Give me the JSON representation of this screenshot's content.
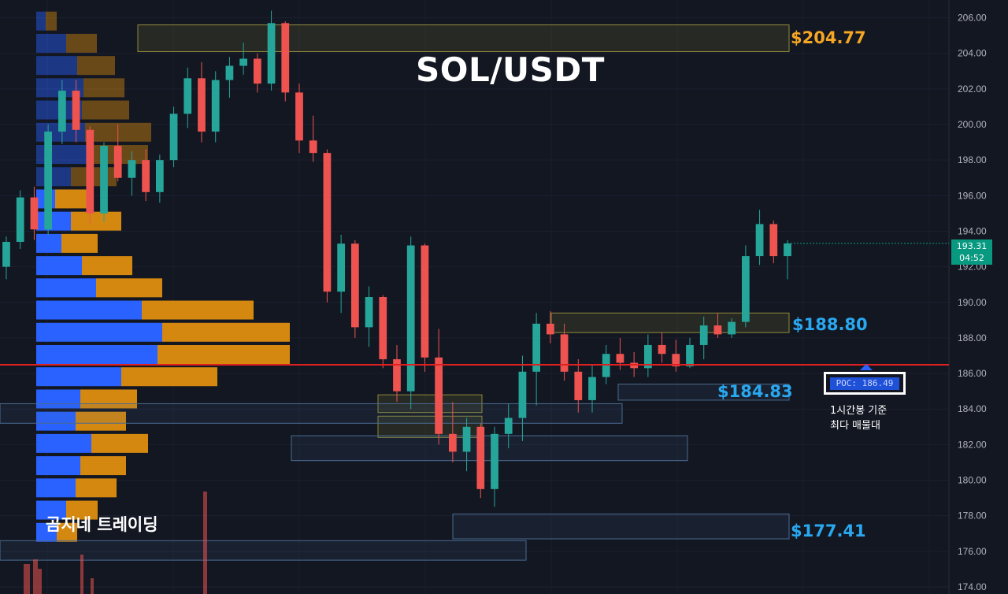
{
  "chart_data": {
    "type": "candlestick",
    "title": "SOL/USDT",
    "watermark": "곰지네 트레이딩",
    "ylim": [
      173.6,
      207.0
    ],
    "y_ticks": [
      "206.00",
      "204.00",
      "202.00",
      "200.00",
      "198.00",
      "196.00",
      "194.00",
      "192.00",
      "190.00",
      "188.00",
      "186.00",
      "184.00",
      "182.00",
      "180.00",
      "178.00",
      "176.00",
      "174.00"
    ],
    "current_price": {
      "price": "193.31",
      "countdown": "04:52",
      "value": 193.31
    },
    "poc": {
      "label": "POC: 186.49",
      "value": 186.49,
      "note": [
        "1시간봉 기준",
        "최다 매물대"
      ]
    },
    "levels": [
      {
        "label": "$204.77",
        "value": 204.77,
        "color": "#f5a623"
      },
      {
        "label": "$188.80",
        "value": 188.8,
        "color": "#29a8f0"
      },
      {
        "label": "$184.83",
        "value": 184.83,
        "color": "#29a8f0"
      },
      {
        "label": "$177.41",
        "value": 177.41,
        "color": "#29a8f0"
      }
    ],
    "zones": [
      {
        "from": 204.1,
        "to": 205.6,
        "style": "supply"
      },
      {
        "from": 188.3,
        "to": 189.4,
        "style": "supply"
      },
      {
        "from": 183.8,
        "to": 184.8,
        "style": "supply"
      },
      {
        "from": 182.4,
        "to": 183.6,
        "style": "supply"
      },
      {
        "from": 184.5,
        "to": 185.4,
        "style": "demand"
      },
      {
        "from": 183.2,
        "to": 184.3,
        "style": "demand"
      },
      {
        "from": 181.1,
        "to": 182.5,
        "style": "demand"
      },
      {
        "from": 176.7,
        "to": 178.1,
        "style": "demand"
      },
      {
        "from": 175.5,
        "to": 176.6,
        "style": "demand"
      }
    ],
    "volume_profile": [
      {
        "price": 205.75,
        "buy": 12,
        "sell": 14
      },
      {
        "price": 204.5,
        "buy": 38,
        "sell": 39
      },
      {
        "price": 203.25,
        "buy": 52,
        "sell": 48
      },
      {
        "price": 202.0,
        "buy": 60,
        "sell": 52
      },
      {
        "price": 200.75,
        "buy": 58,
        "sell": 60
      },
      {
        "price": 199.5,
        "buy": 62,
        "sell": 84
      },
      {
        "price": 198.25,
        "buy": 64,
        "sell": 78
      },
      {
        "price": 197.0,
        "buy": 44,
        "sell": 58
      },
      {
        "price": 195.75,
        "buy": 24,
        "sell": 46
      },
      {
        "price": 194.5,
        "buy": 44,
        "sell": 64
      },
      {
        "price": 193.25,
        "buy": 32,
        "sell": 46
      },
      {
        "price": 192.0,
        "buy": 58,
        "sell": 64
      },
      {
        "price": 190.75,
        "buy": 76,
        "sell": 84
      },
      {
        "price": 189.5,
        "buy": 134,
        "sell": 142
      },
      {
        "price": 188.25,
        "buy": 160,
        "sell": 162
      },
      {
        "price": 187.0,
        "buy": 154,
        "sell": 168
      },
      {
        "price": 185.75,
        "buy": 108,
        "sell": 122
      },
      {
        "price": 184.5,
        "buy": 56,
        "sell": 72
      },
      {
        "price": 183.25,
        "buy": 50,
        "sell": 64
      },
      {
        "price": 182.0,
        "buy": 70,
        "sell": 72
      },
      {
        "price": 180.75,
        "buy": 56,
        "sell": 58
      },
      {
        "price": 179.5,
        "buy": 50,
        "sell": 52
      },
      {
        "price": 178.25,
        "buy": 38,
        "sell": 40
      },
      {
        "price": 177.0,
        "buy": 26,
        "sell": 26
      }
    ],
    "candles": [
      [
        192.0,
        193.7,
        191.3,
        193.4
      ],
      [
        193.4,
        196.3,
        193.0,
        195.9
      ],
      [
        195.9,
        196.5,
        193.5,
        194.1
      ],
      [
        194.1,
        200.0,
        193.8,
        199.6
      ],
      [
        199.6,
        202.5,
        198.9,
        201.9
      ],
      [
        201.9,
        202.5,
        199.0,
        199.7
      ],
      [
        199.7,
        199.9,
        194.4,
        195.0
      ],
      [
        195.0,
        199.0,
        194.5,
        198.8
      ],
      [
        198.8,
        200.0,
        196.8,
        197.0
      ],
      [
        197.0,
        198.5,
        196.0,
        198.0
      ],
      [
        198.0,
        198.6,
        195.7,
        196.2
      ],
      [
        196.2,
        198.3,
        195.6,
        198.0
      ],
      [
        198.0,
        201.0,
        197.6,
        200.6
      ],
      [
        200.6,
        203.2,
        199.8,
        202.6
      ],
      [
        202.6,
        203.5,
        199.0,
        199.6
      ],
      [
        199.6,
        203.0,
        199.0,
        202.5
      ],
      [
        202.5,
        203.8,
        201.5,
        203.3
      ],
      [
        203.3,
        204.6,
        202.8,
        203.7
      ],
      [
        203.7,
        204.0,
        201.8,
        202.3
      ],
      [
        202.3,
        206.4,
        201.9,
        205.7
      ],
      [
        205.7,
        205.8,
        201.3,
        201.8
      ],
      [
        201.8,
        202.3,
        198.4,
        199.1
      ],
      [
        199.1,
        200.5,
        197.9,
        198.4
      ],
      [
        198.4,
        198.6,
        190.0,
        190.6
      ],
      [
        190.6,
        193.8,
        189.4,
        193.3
      ],
      [
        193.3,
        193.5,
        188.0,
        188.6
      ],
      [
        188.6,
        190.9,
        187.5,
        190.3
      ],
      [
        190.3,
        190.4,
        186.3,
        186.8
      ],
      [
        186.8,
        187.6,
        184.4,
        185.0
      ],
      [
        185.0,
        193.7,
        184.0,
        193.2
      ],
      [
        193.2,
        193.3,
        186.1,
        186.9
      ],
      [
        186.9,
        188.5,
        182.0,
        182.6
      ],
      [
        182.6,
        184.4,
        181.0,
        181.6
      ],
      [
        181.6,
        183.5,
        180.5,
        183.0
      ],
      [
        183.0,
        183.2,
        179.0,
        179.5
      ],
      [
        179.5,
        183.0,
        178.5,
        182.6
      ],
      [
        182.6,
        184.3,
        181.8,
        183.5
      ],
      [
        183.5,
        187.0,
        182.2,
        186.1
      ],
      [
        186.1,
        189.4,
        184.2,
        188.8
      ],
      [
        188.8,
        189.5,
        187.7,
        188.2
      ],
      [
        188.2,
        188.8,
        185.6,
        186.1
      ],
      [
        186.1,
        186.8,
        183.8,
        184.5
      ],
      [
        184.5,
        186.5,
        183.8,
        185.8
      ],
      [
        185.8,
        187.6,
        185.4,
        187.1
      ],
      [
        187.1,
        188.0,
        186.2,
        186.6
      ],
      [
        186.6,
        187.2,
        185.8,
        186.3
      ],
      [
        186.3,
        188.2,
        185.8,
        187.6
      ],
      [
        187.6,
        188.3,
        186.6,
        187.1
      ],
      [
        187.1,
        187.9,
        186.1,
        186.4
      ],
      [
        186.4,
        188.0,
        186.3,
        187.6
      ],
      [
        187.6,
        189.2,
        186.8,
        188.7
      ],
      [
        188.7,
        189.4,
        188.0,
        188.2
      ],
      [
        188.2,
        189.1,
        188.0,
        188.9
      ],
      [
        188.9,
        193.2,
        188.6,
        192.6
      ],
      [
        192.6,
        195.2,
        192.1,
        194.4
      ],
      [
        194.4,
        194.6,
        192.2,
        192.6
      ],
      [
        192.6,
        193.5,
        191.3,
        193.31
      ]
    ]
  }
}
